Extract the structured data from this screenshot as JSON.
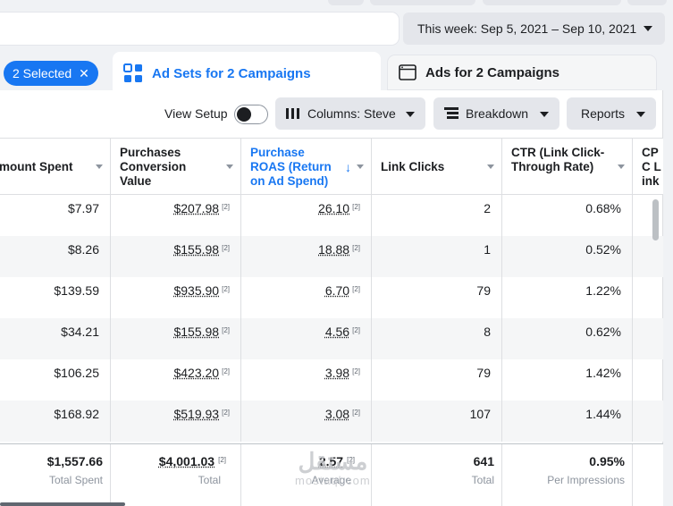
{
  "header": {
    "date_range": "This week: Sep 5, 2021 – Sep 10, 2021"
  },
  "tabs": {
    "selected_chip": "2 Selected",
    "active": "Ad Sets for 2 Campaigns",
    "inactive": "Ads for 2 Campaigns"
  },
  "toolbar": {
    "view_setup": "View Setup",
    "columns": "Columns: Steve",
    "breakdown": "Breakdown",
    "reports": "Reports"
  },
  "table": {
    "headers": {
      "amount_spent": "mount Spent",
      "purchases_value": "Purchases Conversion Value",
      "roas": "Purchase ROAS (Return on Ad Spend)",
      "link_clicks": "Link Clicks",
      "ctr": "CTR (Link Click-Through Rate)",
      "cpc": "CPC Link"
    },
    "note_marker": "[2]",
    "rows": [
      {
        "spent": "$7.97",
        "value": "$207.98",
        "roas": "26.10",
        "clicks": "2",
        "ctr": "0.68%"
      },
      {
        "spent": "$8.26",
        "value": "$155.98",
        "roas": "18.88",
        "clicks": "1",
        "ctr": "0.52%"
      },
      {
        "spent": "$139.59",
        "value": "$935.90",
        "roas": "6.70",
        "clicks": "79",
        "ctr": "1.22%"
      },
      {
        "spent": "$34.21",
        "value": "$155.98",
        "roas": "4.56",
        "clicks": "8",
        "ctr": "0.62%"
      },
      {
        "spent": "$106.25",
        "value": "$423.20",
        "roas": "3.98",
        "clicks": "79",
        "ctr": "1.42%"
      },
      {
        "spent": "$168.92",
        "value": "$519.93",
        "roas": "3.08",
        "clicks": "107",
        "ctr": "1.44%"
      }
    ],
    "totals": {
      "spent": "$1,557.66",
      "spent_label": "Total Spent",
      "value": "$4,001.03",
      "value_label": "Total",
      "roas": "2.57",
      "roas_label": "Average",
      "clicks": "641",
      "clicks_label": "Total",
      "ctr": "0.95%",
      "ctr_label": "Per Impressions"
    }
  },
  "watermark": {
    "arabic": "مستقل",
    "latin": "mostaql.com"
  },
  "colors": {
    "accent": "#1877f2",
    "button_bg": "#e4e6eb",
    "alt_row": "#f5f6f7"
  }
}
